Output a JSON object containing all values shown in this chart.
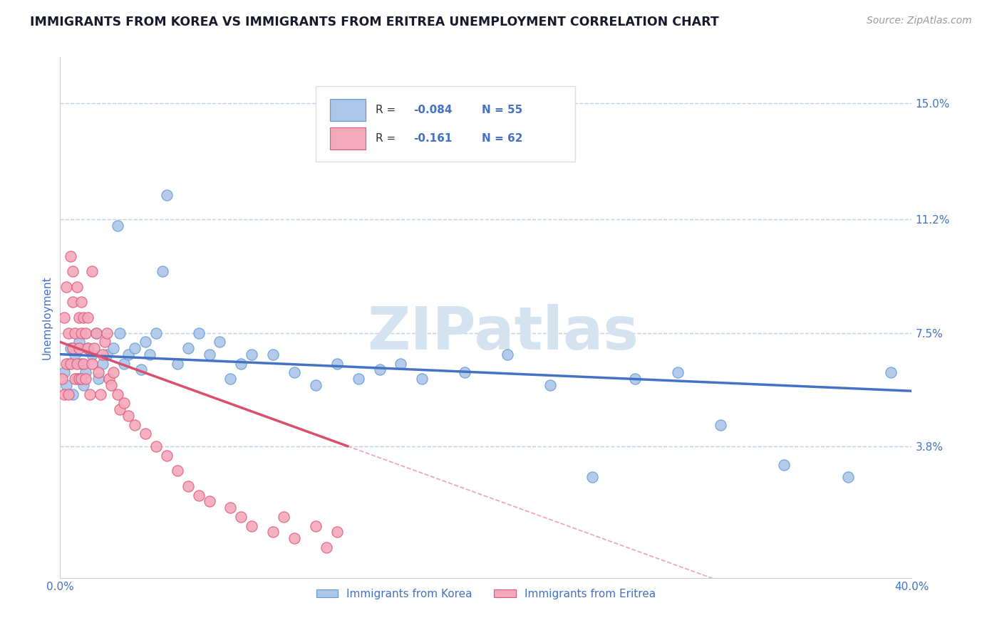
{
  "title": "IMMIGRANTS FROM KOREA VS IMMIGRANTS FROM ERITREA UNEMPLOYMENT CORRELATION CHART",
  "source_text": "Source: ZipAtlas.com",
  "ylabel": "Unemployment",
  "xlim": [
    0.0,
    0.4
  ],
  "ylim": [
    -0.005,
    0.165
  ],
  "xticklabels": [
    "0.0%",
    "40.0%"
  ],
  "ytick_positions": [
    0.038,
    0.075,
    0.112,
    0.15
  ],
  "ytick_labels": [
    "3.8%",
    "7.5%",
    "11.2%",
    "15.0%"
  ],
  "korea_color": "#aec6e8",
  "eritrea_color": "#f4a8bc",
  "korea_edge_color": "#5b9bd5",
  "eritrea_edge_color": "#e05575",
  "korea_trend_color": "#4472c4",
  "eritrea_trend_color": "#d94f6e",
  "eritrea_dash_color": "#f0a0b8",
  "legend_r_korea": "R = ",
  "legend_r_korea_val": "-0.084",
  "legend_n_korea": "N = 55",
  "legend_r_eritrea": "R = ",
  "legend_r_eritrea_val": "-0.161",
  "legend_n_eritrea": "N = 62",
  "watermark": "ZIPatlas",
  "watermark_color": "#d5e3f0",
  "background_color": "#ffffff",
  "grid_color": "#c0d0e0",
  "title_color": "#1a1a2e",
  "axis_label_color": "#4472c4",
  "source_color": "#999999",
  "korea_scatter_x": [
    0.002,
    0.003,
    0.004,
    0.005,
    0.006,
    0.007,
    0.008,
    0.009,
    0.01,
    0.011,
    0.012,
    0.013,
    0.015,
    0.017,
    0.018,
    0.02,
    0.022,
    0.025,
    0.027,
    0.028,
    0.03,
    0.032,
    0.035,
    0.038,
    0.04,
    0.042,
    0.045,
    0.048,
    0.05,
    0.055,
    0.06,
    0.065,
    0.07,
    0.075,
    0.08,
    0.085,
    0.09,
    0.1,
    0.11,
    0.12,
    0.13,
    0.14,
    0.15,
    0.16,
    0.17,
    0.19,
    0.21,
    0.23,
    0.25,
    0.27,
    0.29,
    0.31,
    0.34,
    0.37,
    0.39
  ],
  "korea_scatter_y": [
    0.062,
    0.058,
    0.065,
    0.07,
    0.055,
    0.068,
    0.06,
    0.072,
    0.065,
    0.058,
    0.062,
    0.07,
    0.068,
    0.075,
    0.06,
    0.065,
    0.068,
    0.07,
    0.11,
    0.075,
    0.065,
    0.068,
    0.07,
    0.063,
    0.072,
    0.068,
    0.075,
    0.095,
    0.12,
    0.065,
    0.07,
    0.075,
    0.068,
    0.072,
    0.06,
    0.065,
    0.068,
    0.068,
    0.062,
    0.058,
    0.065,
    0.06,
    0.063,
    0.065,
    0.06,
    0.062,
    0.068,
    0.058,
    0.028,
    0.06,
    0.062,
    0.045,
    0.032,
    0.028,
    0.062
  ],
  "eritrea_scatter_x": [
    0.001,
    0.002,
    0.002,
    0.003,
    0.003,
    0.004,
    0.004,
    0.005,
    0.005,
    0.006,
    0.006,
    0.006,
    0.007,
    0.007,
    0.008,
    0.008,
    0.009,
    0.009,
    0.009,
    0.01,
    0.01,
    0.01,
    0.011,
    0.011,
    0.012,
    0.012,
    0.013,
    0.013,
    0.014,
    0.015,
    0.015,
    0.016,
    0.017,
    0.018,
    0.019,
    0.02,
    0.021,
    0.022,
    0.023,
    0.024,
    0.025,
    0.027,
    0.028,
    0.03,
    0.032,
    0.035,
    0.04,
    0.045,
    0.05,
    0.055,
    0.06,
    0.065,
    0.07,
    0.08,
    0.085,
    0.09,
    0.1,
    0.105,
    0.11,
    0.12,
    0.125,
    0.13
  ],
  "eritrea_scatter_y": [
    0.06,
    0.08,
    0.055,
    0.09,
    0.065,
    0.075,
    0.055,
    0.1,
    0.065,
    0.085,
    0.07,
    0.095,
    0.075,
    0.06,
    0.09,
    0.065,
    0.08,
    0.07,
    0.06,
    0.085,
    0.075,
    0.06,
    0.08,
    0.065,
    0.075,
    0.06,
    0.07,
    0.08,
    0.055,
    0.065,
    0.095,
    0.07,
    0.075,
    0.062,
    0.055,
    0.068,
    0.072,
    0.075,
    0.06,
    0.058,
    0.062,
    0.055,
    0.05,
    0.052,
    0.048,
    0.045,
    0.042,
    0.038,
    0.035,
    0.03,
    0.025,
    0.022,
    0.02,
    0.018,
    0.015,
    0.012,
    0.01,
    0.015,
    0.008,
    0.012,
    0.005,
    0.01
  ]
}
